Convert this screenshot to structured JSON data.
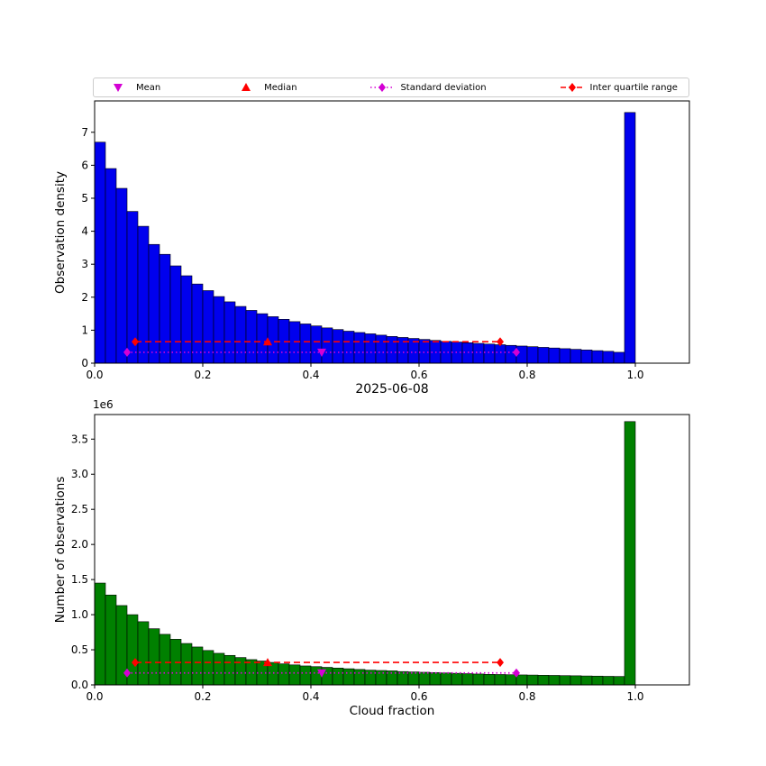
{
  "title": "2025-06-08",
  "xlabel": "Cloud fraction",
  "colors": {
    "mean_std": "#d400d4",
    "median_iqr": "#ff0000",
    "top_bar": "#0000ee",
    "bottom_bar": "#008000",
    "edge": "#000000"
  },
  "legend": {
    "items": [
      {
        "label": "Mean",
        "marker": "triangle-down",
        "color": "#d400d4"
      },
      {
        "label": "Median",
        "marker": "triangle-up",
        "color": "#ff0000"
      },
      {
        "label": "Standard deviation",
        "marker": "diamond-dotted",
        "color": "#d400d4"
      },
      {
        "label": "Inter quartile range",
        "marker": "diamond-dashed",
        "color": "#ff0000"
      }
    ]
  },
  "chart_data": [
    {
      "type": "bar",
      "ylabel": "Observation density",
      "bar_color": "#0000ee",
      "bin_width": 0.02,
      "xlim": [
        0,
        1.1
      ],
      "ylim": [
        0,
        7.95
      ],
      "xticks": {
        "values": [
          0,
          0.2,
          0.4,
          0.6,
          0.8,
          1.0
        ],
        "labels": [
          "0.0",
          "0.2",
          "0.4",
          "0.6",
          "0.8",
          "1.0"
        ]
      },
      "yticks": {
        "values": [
          0,
          1,
          2,
          3,
          4,
          5,
          6,
          7
        ],
        "labels": [
          "0",
          "1",
          "2",
          "3",
          "4",
          "5",
          "6",
          "7"
        ]
      },
      "values": [
        6.7,
        5.9,
        5.3,
        4.6,
        4.15,
        3.6,
        3.3,
        2.95,
        2.65,
        2.4,
        2.2,
        2.02,
        1.86,
        1.72,
        1.6,
        1.5,
        1.41,
        1.33,
        1.26,
        1.19,
        1.13,
        1.07,
        1.02,
        0.97,
        0.93,
        0.89,
        0.85,
        0.81,
        0.78,
        0.75,
        0.72,
        0.69,
        0.66,
        0.64,
        0.62,
        0.6,
        0.58,
        0.56,
        0.54,
        0.52,
        0.5,
        0.48,
        0.46,
        0.44,
        0.42,
        0.4,
        0.38,
        0.36,
        0.33,
        7.6
      ],
      "stats": {
        "mean": 0.42,
        "median": 0.32,
        "std_lo": 0.06,
        "std_hi": 0.78,
        "iqr_lo": 0.075,
        "iqr_hi": 0.75,
        "mean_y": 0.33,
        "iqr_y": 0.65
      }
    },
    {
      "type": "bar",
      "ylabel": "Number of observations",
      "scale_label": "1e6",
      "bar_color": "#008000",
      "bin_width": 0.02,
      "xlim": [
        0,
        1.1
      ],
      "ylim": [
        0,
        3.85
      ],
      "xticks": {
        "values": [
          0,
          0.2,
          0.4,
          0.6,
          0.8,
          1.0
        ],
        "labels": [
          "0.0",
          "0.2",
          "0.4",
          "0.6",
          "0.8",
          "1.0"
        ]
      },
      "yticks": {
        "values": [
          0,
          0.5,
          1.0,
          1.5,
          2.0,
          2.5,
          3.0,
          3.5
        ],
        "labels": [
          "0.0",
          "0.5",
          "1.0",
          "1.5",
          "2.0",
          "2.5",
          "3.0",
          "3.5"
        ]
      },
      "values": [
        1.45,
        1.28,
        1.13,
        1.0,
        0.9,
        0.8,
        0.72,
        0.65,
        0.59,
        0.54,
        0.49,
        0.45,
        0.42,
        0.39,
        0.36,
        0.34,
        0.32,
        0.3,
        0.285,
        0.27,
        0.26,
        0.25,
        0.24,
        0.23,
        0.22,
        0.21,
        0.205,
        0.2,
        0.19,
        0.185,
        0.18,
        0.175,
        0.17,
        0.165,
        0.16,
        0.155,
        0.15,
        0.148,
        0.145,
        0.142,
        0.14,
        0.137,
        0.135,
        0.132,
        0.13,
        0.127,
        0.125,
        0.122,
        0.12,
        3.75
      ],
      "stats": {
        "mean": 0.42,
        "median": 0.32,
        "std_lo": 0.06,
        "std_hi": 0.78,
        "iqr_lo": 0.075,
        "iqr_hi": 0.75,
        "mean_y": 0.17,
        "iqr_y": 0.32
      }
    }
  ]
}
